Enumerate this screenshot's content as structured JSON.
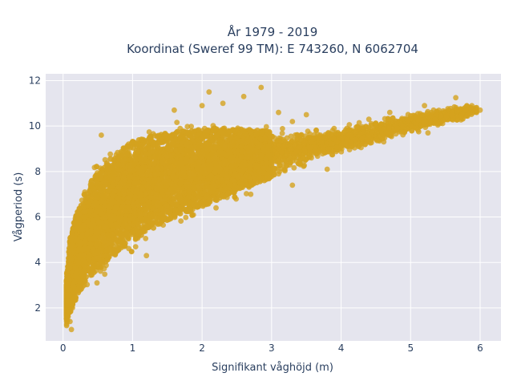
{
  "chart_data": {
    "type": "scatter",
    "title": [
      "År 1979 - 2019",
      "Koordinat (Sweref 99 TM): E 743260, N 6062704"
    ],
    "xlabel": "Signifikant våghöjd (m)",
    "ylabel": "Vågperiod (s)",
    "xlim": [
      -0.25,
      6.3
    ],
    "ylim": [
      0.55,
      12.3
    ],
    "xticks": [
      0,
      1,
      2,
      3,
      4,
      5,
      6
    ],
    "yticks": [
      2,
      4,
      6,
      8,
      10,
      12
    ],
    "grid": true,
    "marker_color": "#d4a21e",
    "plot_background": "#e5e5ee",
    "envelope": {
      "lower": [
        [
          0.05,
          1.1
        ],
        [
          0.12,
          1.4
        ],
        [
          0.2,
          1.9
        ],
        [
          0.3,
          2.4
        ],
        [
          0.4,
          2.7
        ],
        [
          0.5,
          3.0
        ],
        [
          0.7,
          3.5
        ],
        [
          1.0,
          4.2
        ],
        [
          1.3,
          4.8
        ],
        [
          1.6,
          5.4
        ],
        [
          2.0,
          5.9
        ],
        [
          2.4,
          6.5
        ],
        [
          2.8,
          7.1
        ],
        [
          3.2,
          7.7
        ],
        [
          3.6,
          8.3
        ],
        [
          4.0,
          8.7
        ],
        [
          4.5,
          9.1
        ],
        [
          5.0,
          9.6
        ],
        [
          5.5,
          10.0
        ],
        [
          6.0,
          10.5
        ]
      ],
      "upper": [
        [
          0.05,
          3.5
        ],
        [
          0.1,
          5.6
        ],
        [
          0.2,
          6.8
        ],
        [
          0.3,
          7.6
        ],
        [
          0.4,
          8.3
        ],
        [
          0.6,
          9.0
        ],
        [
          0.8,
          9.7
        ],
        [
          1.0,
          10.1
        ],
        [
          1.4,
          10.3
        ],
        [
          1.8,
          10.4
        ],
        [
          2.2,
          10.4
        ],
        [
          2.6,
          10.3
        ],
        [
          3.0,
          10.1
        ],
        [
          3.5,
          9.9
        ],
        [
          4.0,
          10.0
        ],
        [
          4.5,
          10.4
        ],
        [
          5.0,
          10.6
        ],
        [
          5.5,
          10.9
        ],
        [
          6.0,
          11.0
        ]
      ]
    },
    "outliers": [
      [
        2.85,
        11.7
      ],
      [
        2.1,
        11.5
      ],
      [
        2.6,
        11.3
      ],
      [
        2.3,
        11.0
      ],
      [
        2.0,
        10.9
      ],
      [
        1.6,
        10.7
      ],
      [
        3.1,
        10.6
      ],
      [
        3.5,
        10.5
      ],
      [
        3.3,
        10.2
      ],
      [
        5.65,
        11.25
      ],
      [
        5.7,
        10.7
      ],
      [
        5.6,
        10.5
      ],
      [
        5.95,
        10.6
      ],
      [
        6.0,
        10.7
      ],
      [
        5.2,
        10.9
      ],
      [
        5.3,
        10.6
      ],
      [
        5.0,
        10.45
      ],
      [
        5.25,
        9.7
      ],
      [
        4.8,
        10.2
      ],
      [
        4.7,
        10.6
      ],
      [
        4.4,
        10.3
      ],
      [
        4.2,
        9.4
      ],
      [
        3.3,
        7.4
      ],
      [
        3.1,
        7.9
      ],
      [
        3.8,
        8.1
      ],
      [
        2.7,
        7.0
      ],
      [
        2.2,
        6.4
      ],
      [
        1.2,
        4.3
      ],
      [
        0.12,
        1.05
      ],
      [
        0.1,
        1.4
      ],
      [
        0.55,
        9.6
      ]
    ]
  }
}
